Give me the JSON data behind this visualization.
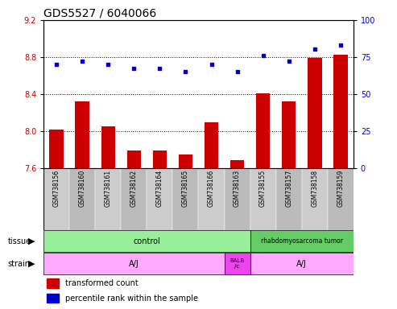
{
  "title": "GDS5527 / 6040066",
  "samples": [
    "GSM738156",
    "GSM738160",
    "GSM738161",
    "GSM738162",
    "GSM738164",
    "GSM738165",
    "GSM738166",
    "GSM738163",
    "GSM738155",
    "GSM738157",
    "GSM738158",
    "GSM738159"
  ],
  "bar_values": [
    8.02,
    8.32,
    8.05,
    7.79,
    7.79,
    7.75,
    8.09,
    7.69,
    8.41,
    8.32,
    8.79,
    8.82
  ],
  "dot_values": [
    70,
    72,
    70,
    67,
    67,
    65,
    70,
    65,
    76,
    72,
    80,
    83
  ],
  "ylim": [
    7.6,
    9.2
  ],
  "y2lim": [
    0,
    100
  ],
  "yticks": [
    7.6,
    8.0,
    8.4,
    8.8,
    9.2
  ],
  "y2ticks": [
    0,
    25,
    50,
    75,
    100
  ],
  "bar_color": "#cc0000",
  "dot_color": "#0000cc",
  "tissue_color_control": "#99ee99",
  "tissue_color_rhabdo": "#66cc66",
  "strain_color_aj": "#ffaaff",
  "strain_color_balb": "#ee44ee",
  "sample_bg_even": "#cccccc",
  "sample_bg_odd": "#bbbbbb",
  "hlines": [
    7.6,
    8.0,
    8.4,
    8.8
  ],
  "legend_bar_label": "transformed count",
  "legend_dot_label": "percentile rank within the sample",
  "title_fontsize": 10,
  "tick_fontsize": 7,
  "sample_fontsize": 5.5,
  "row_fontsize": 7,
  "legend_fontsize": 7
}
